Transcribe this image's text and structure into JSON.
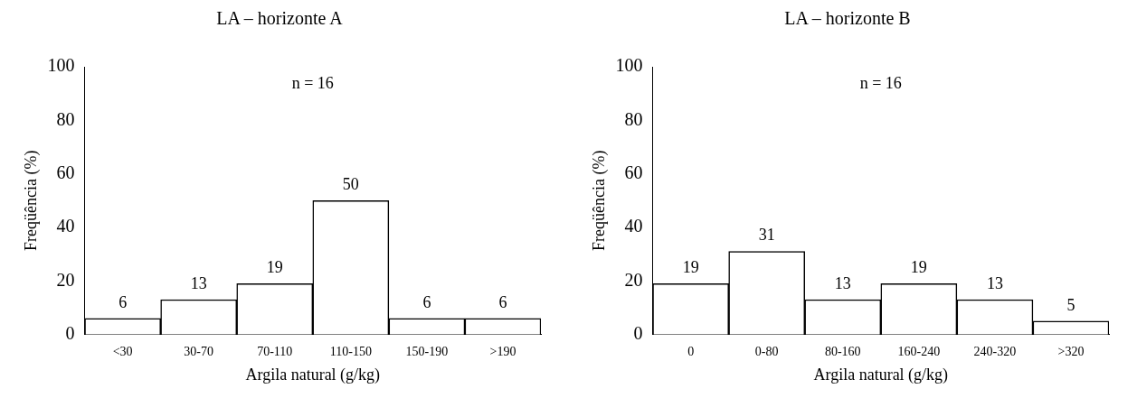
{
  "chart_data": [
    {
      "type": "bar",
      "title": "LA – horizonte A",
      "xlabel": "Argila natural (g/kg)",
      "ylabel": "Freqüência (%)",
      "categories": [
        "<30",
        "30-70",
        "70-110",
        "110-150",
        "150-190",
        ">190"
      ],
      "values": [
        6,
        13,
        19,
        50,
        6,
        6
      ],
      "color": "#ffffff",
      "ylim": [
        0,
        100
      ],
      "yticks": [
        0,
        20,
        40,
        60,
        80,
        100
      ],
      "grid": false,
      "data_labels": true,
      "annotations": [
        "n = 16"
      ]
    },
    {
      "type": "bar",
      "title": "LA – horizonte B",
      "xlabel": "Argila natural (g/kg)",
      "ylabel": "Freqüência (%)",
      "categories": [
        "0",
        "0-80",
        "80-160",
        "160-240",
        "240-320",
        ">320"
      ],
      "values": [
        19,
        31,
        13,
        19,
        13,
        5
      ],
      "color": "#ffffff",
      "ylim": [
        0,
        100
      ],
      "yticks": [
        0,
        20,
        40,
        60,
        80,
        100
      ],
      "grid": false,
      "data_labels": true,
      "annotations": [
        "n = 16"
      ]
    }
  ]
}
